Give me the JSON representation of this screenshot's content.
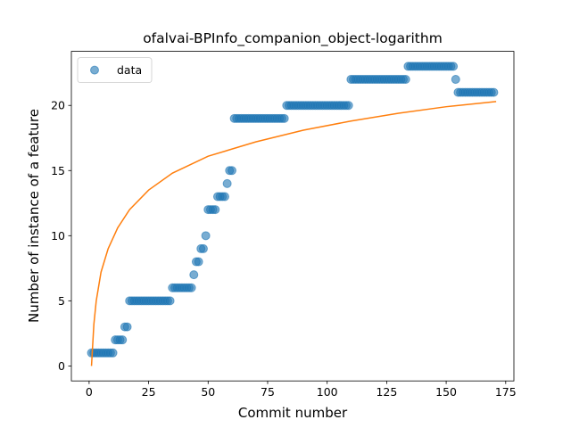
{
  "chart_data": {
    "type": "scatter",
    "title": "ofalvai-BPInfo_companion_object-logarithm",
    "xlabel": "Commit number",
    "ylabel": "Number of instance of a feature",
    "xlim": [
      -7.45,
      178.45
    ],
    "ylim": [
      -1.15,
      24.15
    ],
    "xticks": [
      0,
      25,
      50,
      75,
      100,
      125,
      150,
      175
    ],
    "yticks": [
      0,
      5,
      10,
      15,
      20
    ],
    "legend": "upper left",
    "series": [
      {
        "name": "data",
        "type": "scatter",
        "color": "#1f77b4",
        "alpha": 0.6,
        "x": [
          1,
          2,
          3,
          4,
          5,
          6,
          7,
          8,
          9,
          10,
          11,
          12,
          13,
          14,
          15,
          16,
          17,
          18,
          19,
          20,
          21,
          22,
          23,
          24,
          25,
          26,
          27,
          28,
          29,
          30,
          31,
          32,
          33,
          34,
          35,
          36,
          37,
          38,
          39,
          40,
          41,
          42,
          43,
          44,
          45,
          46,
          47,
          48,
          49,
          50,
          51,
          52,
          53,
          54,
          55,
          56,
          57,
          58,
          59,
          60,
          61,
          62,
          63,
          64,
          65,
          66,
          67,
          68,
          69,
          70,
          71,
          72,
          73,
          74,
          75,
          76,
          77,
          78,
          79,
          80,
          81,
          82,
          83,
          84,
          85,
          86,
          87,
          88,
          89,
          90,
          91,
          92,
          93,
          94,
          95,
          96,
          97,
          98,
          99,
          100,
          101,
          102,
          103,
          104,
          105,
          106,
          107,
          108,
          109,
          110,
          111,
          112,
          113,
          114,
          115,
          116,
          117,
          118,
          119,
          120,
          121,
          122,
          123,
          124,
          125,
          126,
          127,
          128,
          129,
          130,
          131,
          132,
          133,
          134,
          135,
          136,
          137,
          138,
          139,
          140,
          141,
          142,
          143,
          144,
          145,
          146,
          147,
          148,
          149,
          150,
          151,
          152,
          153,
          154,
          155,
          156,
          157,
          158,
          159,
          160,
          161,
          162,
          163,
          164,
          165,
          166,
          167,
          168,
          169,
          170
        ],
        "values": [
          1,
          1,
          1,
          1,
          1,
          1,
          1,
          1,
          1,
          1,
          2,
          2,
          2,
          2,
          3,
          3,
          5,
          5,
          5,
          5,
          5,
          5,
          5,
          5,
          5,
          5,
          5,
          5,
          5,
          5,
          5,
          5,
          5,
          5,
          6,
          6,
          6,
          6,
          6,
          6,
          6,
          6,
          6,
          7,
          8,
          8,
          9,
          9,
          10,
          12,
          12,
          12,
          12,
          13,
          13,
          13,
          13,
          14,
          15,
          15,
          19,
          19,
          19,
          19,
          19,
          19,
          19,
          19,
          19,
          19,
          19,
          19,
          19,
          19,
          19,
          19,
          19,
          19,
          19,
          19,
          19,
          19,
          20,
          20,
          20,
          20,
          20,
          20,
          20,
          20,
          20,
          20,
          20,
          20,
          20,
          20,
          20,
          20,
          20,
          20,
          20,
          20,
          20,
          20,
          20,
          20,
          20,
          20,
          20,
          22,
          22,
          22,
          22,
          22,
          22,
          22,
          22,
          22,
          22,
          22,
          22,
          22,
          22,
          22,
          22,
          22,
          22,
          22,
          22,
          22,
          22,
          22,
          22,
          23,
          23,
          23,
          23,
          23,
          23,
          23,
          23,
          23,
          23,
          23,
          23,
          23,
          23,
          23,
          23,
          23,
          23,
          23,
          23,
          22,
          21,
          21,
          21,
          21,
          21,
          21,
          21,
          21,
          21,
          21,
          21,
          21,
          21,
          21,
          21,
          21
        ]
      },
      {
        "type": "line",
        "color": "#ff7f0e",
        "x": [
          1,
          2,
          3,
          5,
          8,
          12,
          17,
          25,
          35,
          50,
          70,
          90,
          110,
          130,
          150,
          171
        ],
        "values": [
          0,
          3.2,
          5,
          7.2,
          9,
          10.6,
          12,
          13.5,
          14.8,
          16.1,
          17.2,
          18.1,
          18.8,
          19.4,
          19.9,
          20.3
        ]
      }
    ]
  }
}
